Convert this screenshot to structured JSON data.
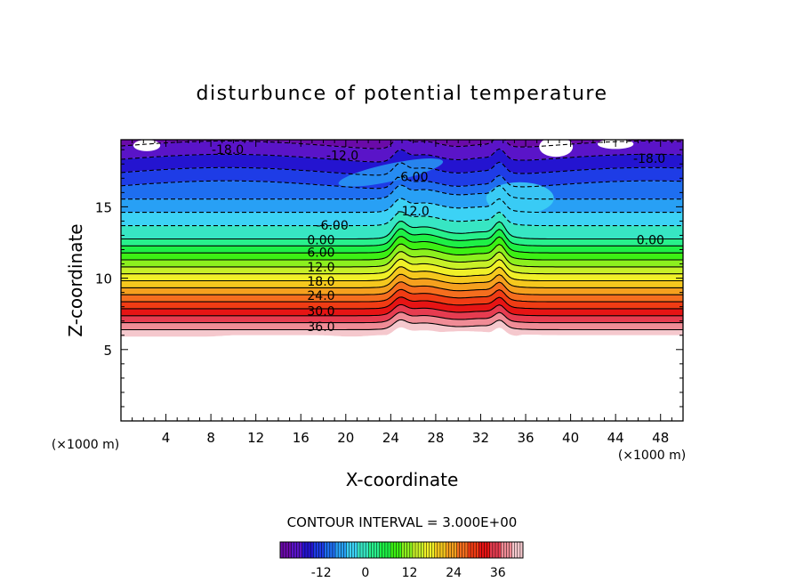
{
  "chart_data": {
    "type": "heatmap",
    "subtype": "filled contour plot",
    "title": "disturbunce of potential temperature",
    "xlabel": "X-coordinate",
    "ylabel": "Z-coordinate",
    "x_unit": "(×1000 m)",
    "y_unit": "(×1000 m)",
    "xlim": [
      0,
      50
    ],
    "ylim": [
      0,
      19.7
    ],
    "x_ticks": [
      "4",
      "8",
      "12",
      "16",
      "20",
      "24",
      "28",
      "32",
      "36",
      "40",
      "44",
      "48"
    ],
    "y_ticks": [
      "5",
      "10",
      "15"
    ],
    "contour_interval_label": "CONTOUR INTERVAL = 3.000E+00",
    "contour_interval": 3.0,
    "negative_contours": "dashed",
    "positive_contours": "solid",
    "contour_labels": [
      {
        "text": "-18.0",
        "x": 9.5,
        "y": 19.0
      },
      {
        "text": "-12.0",
        "x": 19.7,
        "y": 18.6
      },
      {
        "text": "-6.00",
        "x": 25.9,
        "y": 17.1
      },
      {
        "text": "-12.0",
        "x": 26.0,
        "y": 14.7
      },
      {
        "text": "-18.0",
        "x": 47.0,
        "y": 18.4
      },
      {
        "text": "-6.00",
        "x": 18.8,
        "y": 13.7
      },
      {
        "text": "0.00",
        "x": 17.8,
        "y": 12.7
      },
      {
        "text": "0.00",
        "x": 47.1,
        "y": 12.7
      },
      {
        "text": "6.00",
        "x": 17.8,
        "y": 11.8
      },
      {
        "text": "12.0",
        "x": 17.8,
        "y": 10.8
      },
      {
        "text": "18.0",
        "x": 17.8,
        "y": 9.8
      },
      {
        "text": "24.0",
        "x": 17.8,
        "y": 8.8
      },
      {
        "text": "30.0",
        "x": 17.8,
        "y": 7.7
      },
      {
        "text": "36.0",
        "x": 17.8,
        "y": 6.6
      }
    ],
    "colorbar": {
      "ticks": [
        "-12",
        "0",
        "12",
        "24",
        "36"
      ],
      "min": -21,
      "max": 42,
      "step": 3,
      "colors": [
        "#6a0aa8",
        "#5a14c8",
        "#2414d0",
        "#1e3ce6",
        "#1e6ef0",
        "#28a0f5",
        "#3cd2f5",
        "#37e6c3",
        "#28f08c",
        "#1ef046",
        "#3cf014",
        "#8cf01e",
        "#c8f028",
        "#f0f028",
        "#f5c81e",
        "#f5a01e",
        "#f56e1e",
        "#f03c14",
        "#e61414",
        "#e63c50",
        "#f08c96",
        "#f5c8cd"
      ]
    },
    "grid": false,
    "legend": "colorbar bottom-center"
  }
}
